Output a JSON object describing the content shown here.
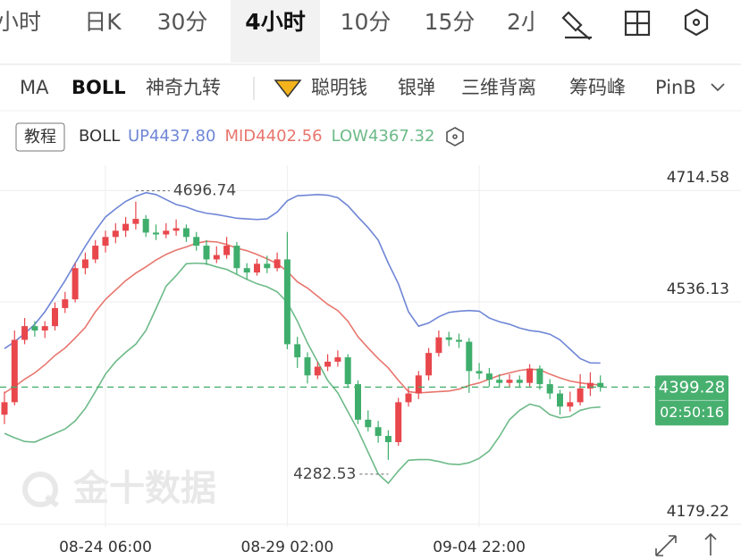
{
  "tabs": [
    "小时",
    "日K",
    "30分",
    "4小时",
    "10分",
    "15分",
    "2小"
  ],
  "indicator_tabs": [
    "MA",
    "BOLL",
    "神奇九转",
    "聪明钱",
    "银弹",
    "三维背离",
    "筹码峰",
    "PinB"
  ],
  "chart_data": {
    "type": "candlestick",
    "tutorial_button": "教程",
    "indicator": "BOLL",
    "watermark": "金十数据",
    "categories": [
      null,
      null,
      null,
      null,
      null,
      null,
      null,
      null,
      null,
      null,
      "08-24 06:00",
      null,
      null,
      null,
      null,
      null,
      null,
      null,
      null,
      null,
      null,
      null,
      null,
      null,
      null,
      null,
      null,
      null,
      "08-29 02:00",
      null,
      null,
      null,
      null,
      null,
      null,
      null,
      null,
      null,
      null,
      null,
      null,
      null,
      null,
      null,
      null,
      null,
      null,
      "09-04 22:00",
      null,
      null,
      null,
      null,
      null,
      null,
      null,
      null,
      null,
      null,
      null,
      null
    ],
    "candles": [
      [
        4355,
        4392,
        4340,
        4375
      ],
      [
        4375,
        4490,
        4370,
        4475
      ],
      [
        4475,
        4510,
        4468,
        4497
      ],
      [
        4497,
        4505,
        4480,
        4490
      ],
      [
        4490,
        4505,
        4478,
        4497
      ],
      [
        4497,
        4535,
        4490,
        4526
      ],
      [
        4526,
        4552,
        4518,
        4540
      ],
      [
        4540,
        4598,
        4535,
        4590
      ],
      [
        4590,
        4615,
        4580,
        4604
      ],
      [
        4604,
        4635,
        4598,
        4626
      ],
      [
        4626,
        4650,
        4615,
        4640
      ],
      [
        4640,
        4662,
        4630,
        4650
      ],
      [
        4650,
        4672,
        4640,
        4661
      ],
      [
        4661,
        4696.74,
        4652,
        4669
      ],
      [
        4669,
        4675,
        4640,
        4647
      ],
      [
        4647,
        4660,
        4635,
        4644
      ],
      [
        4644,
        4662,
        4638,
        4650
      ],
      [
        4650,
        4668,
        4642,
        4654
      ],
      [
        4654,
        4660,
        4632,
        4640
      ],
      [
        4640,
        4648,
        4618,
        4626
      ],
      [
        4626,
        4635,
        4595,
        4604
      ],
      [
        4604,
        4625,
        4598,
        4611
      ],
      [
        4611,
        4640,
        4605,
        4626
      ],
      [
        4626,
        4632,
        4580,
        4590
      ],
      [
        4590,
        4598,
        4572,
        4583
      ],
      [
        4583,
        4605,
        4578,
        4597
      ],
      [
        4597,
        4610,
        4582,
        4590
      ],
      [
        4590,
        4615,
        4585,
        4604
      ],
      [
        4604,
        4648,
        4460,
        4468
      ],
      [
        4468,
        4480,
        4430,
        4447
      ],
      [
        4447,
        4455,
        4405,
        4418
      ],
      [
        4418,
        4440,
        4412,
        4432
      ],
      [
        4432,
        4452,
        4425,
        4440
      ],
      [
        4440,
        4458,
        4432,
        4447
      ],
      [
        4447,
        4452,
        4398,
        4404
      ],
      [
        4404,
        4410,
        4340,
        4347
      ],
      [
        4347,
        4362,
        4328,
        4335
      ],
      [
        4335,
        4345,
        4310,
        4321
      ],
      [
        4321,
        4330,
        4282.53,
        4311
      ],
      [
        4311,
        4382,
        4305,
        4375
      ],
      [
        4375,
        4398,
        4368,
        4389
      ],
      [
        4389,
        4425,
        4380,
        4418
      ],
      [
        4418,
        4462,
        4410,
        4454
      ],
      [
        4454,
        4490,
        4448,
        4479
      ],
      [
        4479,
        4488,
        4465,
        4475
      ],
      [
        4475,
        4485,
        4462,
        4472
      ],
      [
        4472,
        4478,
        4390,
        4425
      ],
      [
        4425,
        4438,
        4412,
        4421
      ],
      [
        4421,
        4430,
        4400,
        4411
      ],
      [
        4411,
        4420,
        4398,
        4406
      ],
      [
        4406,
        4420,
        4400,
        4411
      ],
      [
        4411,
        4418,
        4398,
        4406
      ],
      [
        4406,
        4436,
        4400,
        4429
      ],
      [
        4429,
        4434,
        4395,
        4404
      ],
      [
        4404,
        4412,
        4380,
        4389
      ],
      [
        4389,
        4395,
        4355,
        4368
      ],
      [
        4368,
        4392,
        4360,
        4375
      ],
      [
        4375,
        4420,
        4370,
        4397
      ],
      [
        4397,
        4423,
        4385,
        4406
      ],
      [
        4406,
        4418,
        4392,
        4399.28
      ]
    ],
    "up_color": "#e8474c",
    "down_color": "#3fae6c",
    "series": [
      {
        "name": "UP4437.80",
        "color": "#6f86d6",
        "values": [
          4461,
          4472,
          4485,
          4500,
          4520,
          4545,
          4570,
          4598,
          4625,
          4650,
          4672,
          4685,
          4697,
          4705,
          4711,
          4708,
          4700,
          4692,
          4688,
          4682,
          4678,
          4676,
          4673,
          4670,
          4669,
          4668,
          4669,
          4680,
          4698,
          4706,
          4707,
          4708,
          4707,
          4703,
          4690,
          4672,
          4655,
          4635,
          4598,
          4565,
          4520,
          4497,
          4502,
          4512,
          4519,
          4521,
          4522,
          4521,
          4510,
          4504,
          4500,
          4494,
          4490,
          4488,
          4484,
          4475,
          4460,
          4445,
          4438,
          4437.8
        ]
      },
      {
        "name": "MID4402.56",
        "color": "#e7766d",
        "values": [
          4390,
          4400,
          4412,
          4422,
          4435,
          4450,
          4462,
          4478,
          4495,
          4520,
          4540,
          4555,
          4570,
          4582,
          4592,
          4603,
          4612,
          4619,
          4624,
          4630,
          4633,
          4632,
          4628,
          4622,
          4618,
          4612,
          4605,
          4597,
          4585,
          4568,
          4558,
          4545,
          4532,
          4522,
          4505,
          4480,
          4462,
          4445,
          4430,
          4410,
          4392,
          4390,
          4391,
          4392,
          4393,
          4396,
          4402,
          4406,
          4412,
          4418,
          4422,
          4426,
          4428,
          4427,
          4420,
          4414,
          4409,
          4406,
          4404,
          4402.56
        ]
      },
      {
        "name": "LOW4367.32",
        "color": "#6dba88",
        "values": [
          4325,
          4318,
          4312,
          4311,
          4318,
          4325,
          4332,
          4345,
          4365,
          4392,
          4420,
          4440,
          4455,
          4468,
          4490,
          4525,
          4561,
          4578,
          4597,
          4598,
          4597,
          4592,
          4588,
          4580,
          4572,
          4565,
          4560,
          4552,
          4535,
          4505,
          4470,
          4440,
          4410,
          4390,
          4360,
          4330,
          4295,
          4260,
          4245,
          4265,
          4282,
          4283,
          4283,
          4280,
          4276,
          4275,
          4278,
          4285,
          4297,
          4320,
          4347,
          4362,
          4372,
          4368,
          4355,
          4350,
          4352,
          4362,
          4366,
          4367.32
        ]
      }
    ],
    "ylim": [
      4175,
      4755
    ],
    "yticks": [
      4714.58,
      4536.13,
      4179.22
    ],
    "grid": true,
    "last_price": 4399.28,
    "last_price_color": "#48b06f",
    "countdown": "02:50:16"
  }
}
